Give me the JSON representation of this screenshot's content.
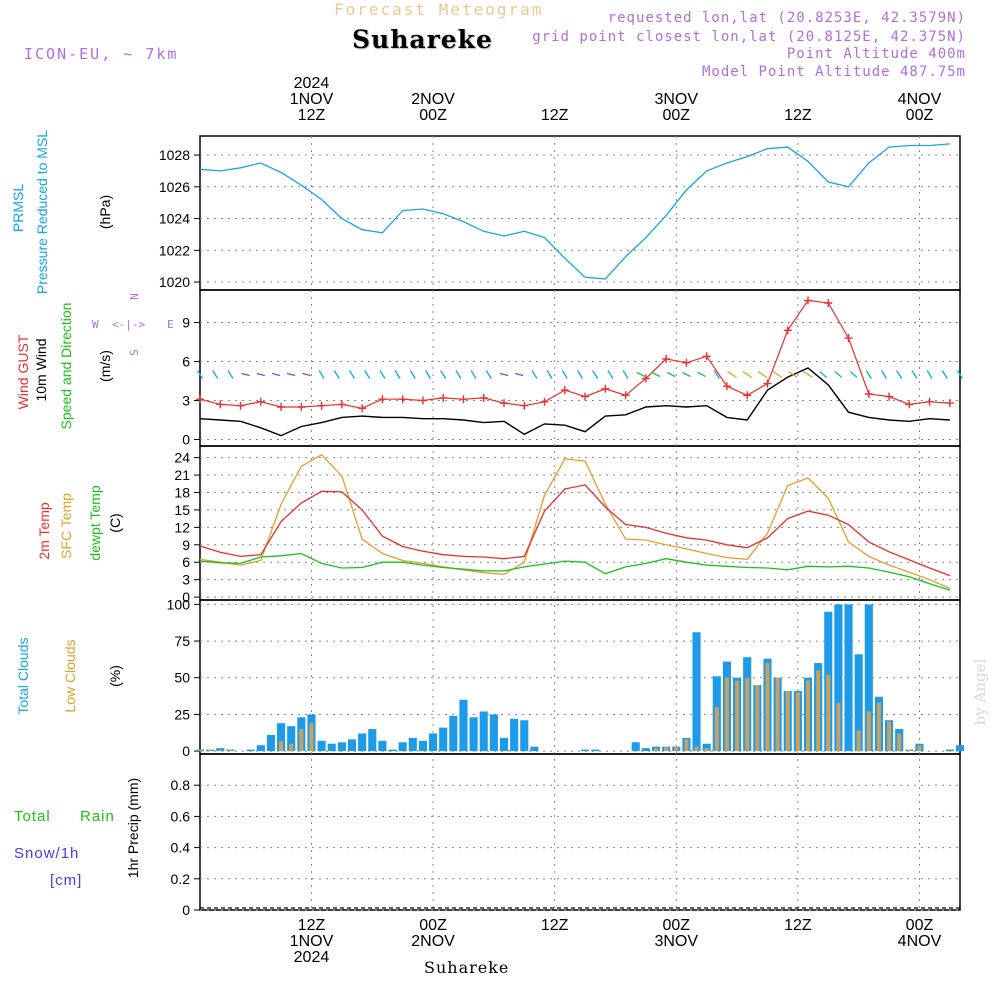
{
  "header": {
    "title": "Suhareke",
    "subtitle": "Forecast Meteogram",
    "model": "ICON-EU, ~ 7km",
    "requested": "requested lon,lat (20.8253E, 42.3579N)",
    "gridpoint": "grid point closest lon,lat (20.8125E, 42.375N)",
    "point_alt": "Point Altitude 400m",
    "model_alt": "Model Point Altitude 487.75m",
    "footer": "Suhareke",
    "watermark": "by Angel"
  },
  "colors": {
    "pressure": "#1aa3e6",
    "gust": "#e83030",
    "wind": "#000000",
    "t2m": "#e83030",
    "sfc": "#e0a030",
    "dewpt": "#22bb22",
    "total": "#1e9be8",
    "low": "#c8a060",
    "purple": "#9040d0",
    "rain": "#22bb22",
    "snow": "#4040e0"
  },
  "time_axis": {
    "top_labels": [
      [
        "2024",
        "1NOV",
        "12Z"
      ],
      [
        "",
        "2NOV",
        "00Z"
      ],
      [
        "",
        "",
        "12Z"
      ],
      [
        "",
        "3NOV",
        "00Z"
      ],
      [
        "",
        "",
        "12Z"
      ],
      [
        "",
        "4NOV",
        "00Z"
      ]
    ],
    "bottom_labels": [
      [
        "12Z",
        "1NOV",
        "2024"
      ],
      [
        "00Z",
        "2NOV",
        ""
      ],
      [
        "12Z",
        "",
        ""
      ],
      [
        "00Z",
        "3NOV",
        ""
      ],
      [
        "12Z",
        "",
        ""
      ],
      [
        "00Z",
        "4NOV",
        ""
      ]
    ],
    "tick_hours": [
      12,
      24,
      36,
      48,
      60,
      72
    ],
    "hour_range": [
      1,
      76
    ]
  },
  "panel_labels": {
    "p1": [
      "PRMSL",
      "Pressure Reduced to MSL",
      "(hPa)"
    ],
    "p2": [
      "Wind GUST",
      "10m Wind",
      "Speed and Direction",
      "(m/s)"
    ],
    "p2_compass": {
      "w": "W",
      "arrow": "<-|->",
      "e": "E",
      "n": "N",
      "s": "S"
    },
    "p3": [
      "2m Temp",
      "SFC Temp",
      "dewpt Temp",
      "(C)"
    ],
    "p4": [
      "Total Clouds",
      "Low Clouds",
      "(%)"
    ],
    "p5": [
      "Total",
      "Rain",
      "Snow/1h",
      "[cm]",
      "1hr Precip (mm)"
    ]
  },
  "chart_data": [
    {
      "type": "line",
      "name": "pressure",
      "ylabel": "(hPa)",
      "ylim": [
        1019.5,
        1029.2
      ],
      "yticks": [
        1020,
        1022,
        1024,
        1026,
        1028
      ],
      "series": [
        {
          "name": "PRMSL",
          "x": [
            1,
            3,
            5,
            7,
            9,
            11,
            13,
            15,
            17,
            19,
            21,
            23,
            25,
            27,
            29,
            31,
            33,
            35,
            37,
            39,
            41,
            43,
            45,
            47,
            49,
            51,
            53,
            55,
            57,
            59,
            61,
            63,
            65,
            67,
            69,
            71,
            73,
            75
          ],
          "values": [
            1027.1,
            1027.0,
            1027.2,
            1027.5,
            1026.9,
            1026.1,
            1025.2,
            1024.0,
            1023.3,
            1023.1,
            1024.5,
            1024.6,
            1024.3,
            1023.8,
            1023.2,
            1022.9,
            1023.2,
            1022.8,
            1021.5,
            1020.3,
            1020.2,
            1021.6,
            1022.8,
            1024.2,
            1025.8,
            1027.0,
            1027.5,
            1027.9,
            1028.4,
            1028.5,
            1027.6,
            1026.3,
            1026.0,
            1027.5,
            1028.5,
            1028.6,
            1028.6,
            1028.7
          ]
        }
      ]
    },
    {
      "type": "line",
      "name": "wind",
      "ylabel": "(m/s)",
      "ylim": [
        -0.5,
        11.5
      ],
      "yticks": [
        0,
        3,
        6,
        9
      ],
      "series": [
        {
          "name": "Wind GUST",
          "x": [
            1,
            3,
            5,
            7,
            9,
            11,
            13,
            15,
            17,
            19,
            21,
            23,
            25,
            27,
            29,
            31,
            33,
            35,
            37,
            39,
            41,
            43,
            45,
            47,
            49,
            51,
            53,
            55,
            57,
            59,
            61,
            63,
            65,
            67,
            69,
            71,
            73,
            75
          ],
          "values": [
            3.1,
            2.7,
            2.6,
            2.9,
            2.5,
            2.5,
            2.6,
            2.7,
            2.4,
            3.1,
            3.1,
            3.0,
            3.2,
            3.1,
            3.2,
            2.8,
            2.6,
            2.9,
            3.8,
            3.3,
            3.9,
            3.4,
            4.7,
            6.2,
            5.9,
            6.4,
            4.1,
            3.4,
            4.3,
            8.4,
            10.7,
            10.5,
            7.8,
            3.5,
            3.3,
            2.7,
            2.9,
            2.8
          ]
        },
        {
          "name": "10m Wind",
          "x": [
            1,
            3,
            5,
            7,
            9,
            11,
            13,
            15,
            17,
            19,
            21,
            23,
            25,
            27,
            29,
            31,
            33,
            35,
            37,
            39,
            41,
            43,
            45,
            47,
            49,
            51,
            53,
            55,
            57,
            59,
            61,
            63,
            65,
            67,
            69,
            71,
            73,
            75
          ],
          "values": [
            1.6,
            1.5,
            1.4,
            0.9,
            0.3,
            1.0,
            1.3,
            1.7,
            1.8,
            1.7,
            1.7,
            1.6,
            1.6,
            1.5,
            1.3,
            1.4,
            0.4,
            1.2,
            1.1,
            0.6,
            1.8,
            1.9,
            2.5,
            2.6,
            2.5,
            2.6,
            1.7,
            1.5,
            3.8,
            4.8,
            5.5,
            4.2,
            2.1,
            1.7,
            1.5,
            1.4,
            1.6,
            1.5
          ]
        }
      ]
    },
    {
      "type": "line",
      "name": "temperature",
      "ylabel": "(C)",
      "ylim": [
        -0.5,
        26
      ],
      "yticks": [
        0,
        3,
        6,
        9,
        12,
        15,
        18,
        21,
        24
      ],
      "series": [
        {
          "name": "2m Temp",
          "x": [
            1,
            3,
            5,
            7,
            9,
            11,
            13,
            15,
            17,
            19,
            21,
            23,
            25,
            27,
            29,
            31,
            33,
            35,
            37,
            39,
            41,
            43,
            45,
            47,
            49,
            51,
            53,
            55,
            57,
            59,
            61,
            63,
            65,
            67,
            69,
            71,
            73,
            75
          ],
          "values": [
            8.8,
            7.7,
            7.0,
            7.3,
            13.0,
            16.2,
            18.2,
            18.1,
            15.0,
            10.5,
            8.7,
            7.9,
            7.3,
            7.0,
            6.9,
            6.6,
            7.0,
            14.8,
            18.6,
            19.3,
            15.5,
            12.5,
            12.0,
            11.0,
            10.2,
            9.8,
            9.0,
            8.5,
            10.2,
            13.5,
            14.8,
            14.1,
            12.5,
            9.5,
            7.8,
            6.4,
            5.0,
            3.7
          ]
        },
        {
          "name": "SFC Temp",
          "x": [
            1,
            3,
            5,
            7,
            9,
            11,
            13,
            15,
            17,
            19,
            21,
            23,
            25,
            27,
            29,
            31,
            33,
            35,
            37,
            39,
            41,
            43,
            45,
            47,
            49,
            51,
            53,
            55,
            57,
            59,
            61,
            63,
            65,
            67,
            69,
            71,
            73,
            75
          ],
          "values": [
            6.5,
            6.0,
            5.5,
            6.3,
            16.0,
            22.5,
            24.5,
            20.8,
            10.0,
            7.5,
            6.3,
            5.8,
            5.2,
            4.7,
            4.2,
            3.9,
            6.0,
            17.5,
            23.8,
            23.4,
            16.0,
            10.0,
            9.8,
            9.0,
            8.3,
            7.5,
            6.8,
            6.5,
            11.0,
            19.2,
            20.5,
            17.0,
            9.5,
            7.0,
            5.5,
            4.3,
            3.0,
            1.5
          ]
        },
        {
          "name": "dewpt Temp",
          "x": [
            1,
            3,
            5,
            7,
            9,
            11,
            13,
            15,
            17,
            19,
            21,
            23,
            25,
            27,
            29,
            31,
            33,
            35,
            37,
            39,
            41,
            43,
            45,
            47,
            49,
            51,
            53,
            55,
            57,
            59,
            61,
            63,
            65,
            67,
            69,
            71,
            73,
            75
          ],
          "values": [
            6.2,
            5.9,
            5.8,
            6.9,
            7.1,
            7.5,
            5.8,
            5.0,
            5.1,
            6.0,
            6.0,
            5.5,
            5.1,
            4.8,
            4.5,
            4.5,
            5.2,
            5.7,
            6.2,
            6.0,
            4.0,
            5.2,
            5.8,
            6.6,
            6.0,
            5.5,
            5.3,
            5.1,
            5.0,
            4.7,
            5.3,
            5.2,
            5.3,
            5.0,
            4.3,
            3.5,
            2.3,
            1.2
          ]
        }
      ]
    },
    {
      "type": "bar",
      "name": "clouds",
      "ylabel": "(%)",
      "ylim": [
        -2,
        103
      ],
      "yticks": [
        0,
        25,
        50,
        75,
        100
      ],
      "x": [
        1,
        2,
        3,
        4,
        5,
        6,
        7,
        8,
        9,
        10,
        11,
        12,
        13,
        14,
        15,
        16,
        17,
        18,
        19,
        20,
        21,
        22,
        23,
        24,
        25,
        26,
        27,
        28,
        29,
        30,
        31,
        32,
        33,
        34,
        35,
        36,
        37,
        38,
        39,
        40,
        41,
        42,
        43,
        44,
        45,
        46,
        47,
        48,
        49,
        50,
        51,
        52,
        53,
        54,
        55,
        56,
        57,
        58,
        59,
        60,
        61,
        62,
        63,
        64,
        65,
        66,
        67,
        68,
        69,
        70,
        71,
        72,
        73,
        74,
        75,
        76
      ],
      "series": [
        {
          "name": "Total Clouds",
          "values": [
            1,
            1,
            2,
            1,
            0,
            1,
            4,
            11,
            19,
            17,
            23,
            25,
            7,
            5,
            6,
            8,
            12,
            15,
            7,
            1,
            6,
            9,
            7,
            12,
            16,
            24,
            35,
            23,
            27,
            25,
            9,
            22,
            21,
            3,
            0,
            0,
            0,
            0,
            1,
            1,
            0,
            0,
            0,
            6,
            2,
            3,
            3,
            3,
            9,
            81,
            5,
            51,
            61,
            50,
            64,
            45,
            63,
            50,
            41,
            41,
            50,
            60,
            95,
            100,
            100,
            66,
            100,
            37,
            21,
            15,
            1,
            5,
            0,
            0,
            1,
            4
          ]
        },
        {
          "name": "Low Clouds",
          "values": [
            1,
            1,
            1,
            1,
            0,
            0,
            0,
            0,
            7,
            5,
            15,
            19,
            0,
            0,
            0,
            0,
            0,
            0,
            0,
            0,
            0,
            0,
            0,
            0,
            0,
            0,
            0,
            0,
            0,
            0,
            0,
            0,
            0,
            0,
            0,
            0,
            0,
            0,
            0,
            0,
            0,
            0,
            0,
            0,
            0,
            2,
            3,
            3,
            8,
            3,
            2,
            30,
            50,
            48,
            50,
            45,
            60,
            50,
            41,
            40,
            48,
            55,
            52,
            33,
            0,
            14,
            27,
            33,
            20,
            12,
            1,
            4,
            0,
            0,
            0,
            0
          ]
        }
      ]
    },
    {
      "type": "bar",
      "name": "precip",
      "ylabel": "1hr Precip (mm)",
      "ylim": [
        0,
        1.0
      ],
      "yticks": [
        0,
        0.2,
        0.4,
        0.6,
        0.8
      ],
      "series": [
        {
          "name": "Total Rain",
          "values": []
        },
        {
          "name": "Snow/1h",
          "values": []
        }
      ]
    }
  ]
}
